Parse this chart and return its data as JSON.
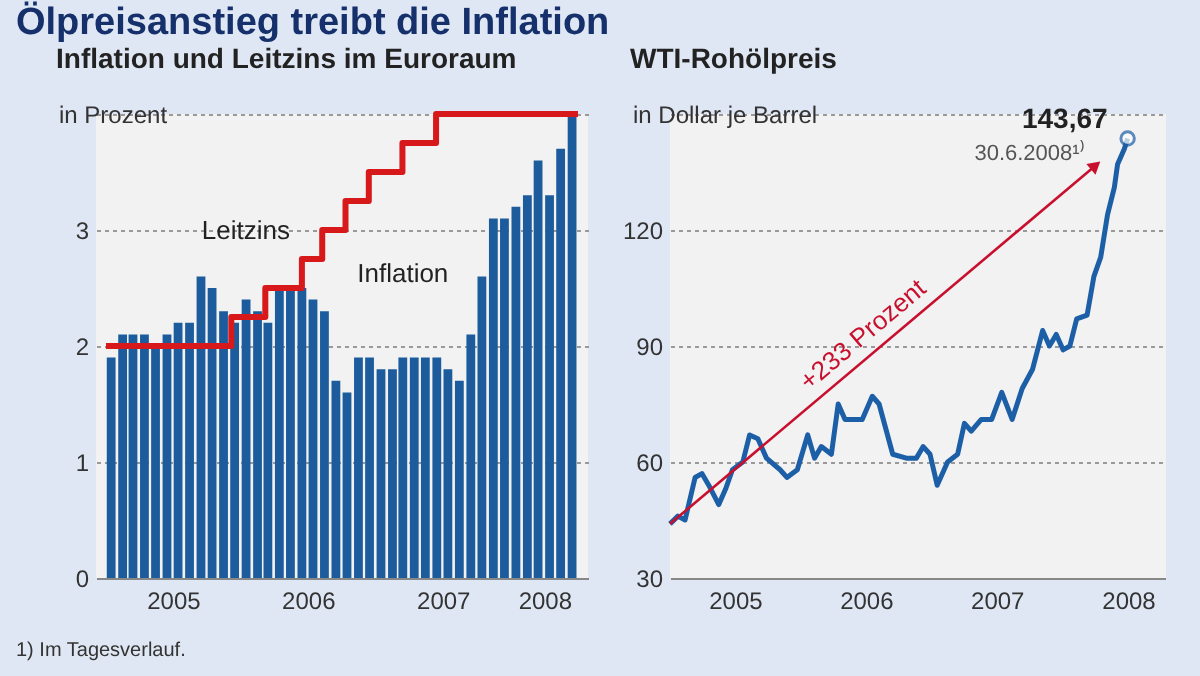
{
  "chart_data": [
    {
      "type": "bar",
      "title": "Ölpreisanstieg treibt die Inflation",
      "subtitle": "Inflation und Leitzins im Euroraum",
      "ylabel": "in Prozent",
      "xlim": [
        "2005-01-01",
        "2008-07-01"
      ],
      "xticks": [
        {
          "value": "2005-07-01",
          "label": "2005"
        },
        {
          "value": "2006-07-01",
          "label": "2006"
        },
        {
          "value": "2007-07-01",
          "label": "2007"
        },
        {
          "value": "2008-04-01",
          "label": "2008"
        }
      ],
      "ylim": [
        0,
        4
      ],
      "yticks": [
        0,
        1,
        2,
        3,
        {
          "value": 4,
          "label": null
        }
      ],
      "grid": "y",
      "legend": false,
      "annotations": [
        "1) Im Tagesverlauf."
      ],
      "series": [
        {
          "name": "Inflation",
          "color": "#1c5c9c",
          "x": [
            "2005-01-15",
            "2005-02-15",
            "2005-03-15",
            "2005-04-15",
            "2005-05-15",
            "2005-06-15",
            "2005-07-15",
            "2005-08-15",
            "2005-09-15",
            "2005-10-15",
            "2005-11-15",
            "2005-12-15",
            "2006-01-15",
            "2006-02-15",
            "2006-03-15",
            "2006-04-15",
            "2006-05-15",
            "2006-06-15",
            "2006-07-15",
            "2006-08-15",
            "2006-09-15",
            "2006-10-15",
            "2006-11-15",
            "2006-12-15",
            "2007-01-15",
            "2007-02-15",
            "2007-03-15",
            "2007-04-15",
            "2007-05-15",
            "2007-06-15",
            "2007-07-15",
            "2007-08-15",
            "2007-09-15",
            "2007-10-15",
            "2007-11-15",
            "2007-12-15",
            "2008-01-15",
            "2008-02-15",
            "2008-03-15",
            "2008-04-15",
            "2008-05-15",
            "2008-06-15"
          ],
          "values": [
            1.9,
            2.1,
            2.1,
            2.1,
            2.0,
            2.1,
            2.2,
            2.2,
            2.6,
            2.5,
            2.3,
            2.2,
            2.4,
            2.3,
            2.2,
            2.5,
            2.5,
            2.5,
            2.4,
            2.3,
            1.7,
            1.6,
            1.9,
            1.9,
            1.8,
            1.8,
            1.9,
            1.9,
            1.9,
            1.9,
            1.8,
            1.7,
            2.1,
            2.6,
            3.1,
            3.1,
            3.2,
            3.3,
            3.6,
            3.3,
            3.7,
            4.0
          ]
        },
        {
          "name": "Leitzins",
          "type": "step",
          "color": "#d7191c",
          "x": [
            "2005-01-01",
            "2005-12-06",
            "2006-03-08",
            "2006-06-15",
            "2006-08-09",
            "2006-10-11",
            "2006-12-13",
            "2007-03-14",
            "2007-06-13",
            "2008-07-01"
          ],
          "values": [
            2.0,
            2.25,
            2.5,
            2.75,
            3.0,
            3.25,
            3.5,
            3.75,
            4.0,
            4.0
          ]
        }
      ]
    },
    {
      "type": "line",
      "title": "WTI-Rohölpreis",
      "ylabel": "in Dollar je Barrel",
      "xlim": [
        "2005-01-01",
        "2008-10-15"
      ],
      "xticks": [
        {
          "value": "2005-07-01",
          "label": "2005"
        },
        {
          "value": "2006-07-01",
          "label": "2006"
        },
        {
          "value": "2007-07-01",
          "label": "2007"
        },
        {
          "value": "2008-07-01",
          "label": "2008"
        }
      ],
      "ylim": [
        30,
        150
      ],
      "yticks": [
        30,
        60,
        90,
        120,
        {
          "value": 150,
          "label": null
        }
      ],
      "grid": "y",
      "legend": false,
      "marker": "none",
      "annotations": [
        "+233 Prozent",
        {
          "text": "143,67",
          "x": "2008-06-30",
          "y": 143.67
        },
        {
          "text": "30.6.2008¹⁾",
          "x": "2008-06-30",
          "y": 143.67
        }
      ],
      "series": [
        {
          "color": "#1d5fa6",
          "x": [
            "2005-01-01",
            "2005-01-23",
            "2005-02-12",
            "2005-03-12",
            "2005-03-31",
            "2005-04-19",
            "2005-05-17",
            "2005-06-05",
            "2005-06-24",
            "2005-07-23",
            "2005-08-11",
            "2005-09-03",
            "2005-09-27",
            "2005-11-04",
            "2005-11-23",
            "2005-12-22",
            "2006-01-20",
            "2006-02-08",
            "2006-02-27",
            "2006-03-27",
            "2006-04-15",
            "2006-05-04",
            "2006-05-27",
            "2006-06-21",
            "2006-07-19",
            "2006-08-07",
            "2006-09-14",
            "2006-10-22",
            "2006-11-19",
            "2006-12-08",
            "2006-12-27",
            "2007-01-16",
            "2007-02-14",
            "2007-03-14",
            "2007-04-02",
            "2007-04-21",
            "2007-05-19",
            "2007-06-17",
            "2007-07-15",
            "2007-08-13",
            "2007-09-10",
            "2007-10-09",
            "2007-11-06",
            "2007-11-25",
            "2007-12-14",
            "2008-01-02",
            "2008-01-21",
            "2008-02-09",
            "2008-03-09",
            "2008-03-28",
            "2008-04-16",
            "2008-05-05",
            "2008-05-24",
            "2008-06-02",
            "2008-06-21",
            "2008-06-30"
          ],
          "values": [
            44,
            46,
            45,
            56,
            57,
            54,
            49,
            53,
            58,
            60,
            67,
            66,
            61,
            58,
            56,
            58,
            67,
            61,
            64,
            62,
            75,
            71,
            71,
            71,
            77,
            75,
            62,
            61,
            61,
            64,
            62,
            54,
            60,
            62,
            70,
            68,
            71,
            71,
            78,
            71,
            79,
            84,
            94,
            90,
            93,
            89,
            90,
            97,
            98,
            108,
            113,
            124,
            131,
            137,
            141,
            143.67
          ]
        }
      ]
    }
  ]
}
